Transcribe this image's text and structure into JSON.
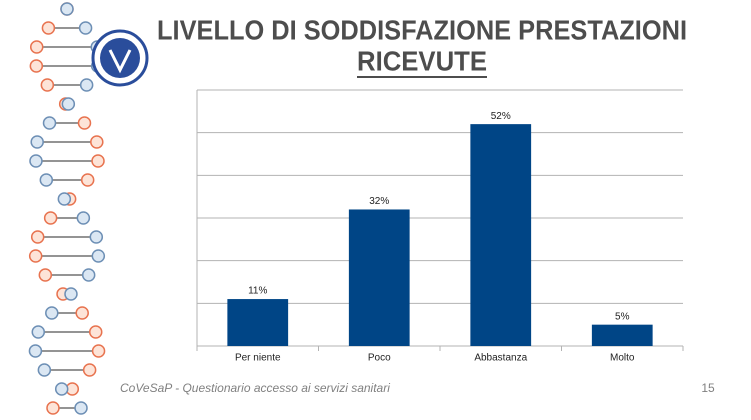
{
  "chart_data": {
    "type": "bar",
    "title": "LIVELLO DI SODDISFAZIONE PRESTAZIONI",
    "subtitle": "RICEVUTE",
    "categories": [
      "Per niente",
      "Poco",
      "Abbastanza",
      "Molto"
    ],
    "values": [
      11,
      32,
      52,
      5
    ],
    "value_labels": [
      "11%",
      "32%",
      "52%",
      "5%"
    ],
    "color": "#004586",
    "ylim": [
      0,
      60
    ],
    "yticks": [
      0,
      10,
      20,
      30,
      40,
      50,
      60
    ],
    "grid": true,
    "footer": "CoVeSaP - Questionario accesso ai servizi sanitari",
    "page_number": "15"
  }
}
